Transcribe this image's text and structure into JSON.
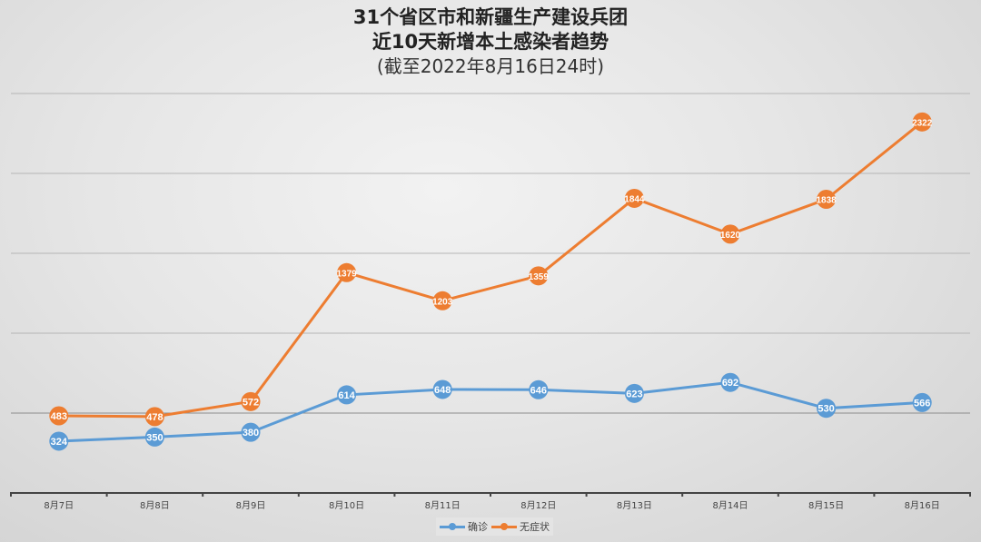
{
  "title": {
    "line1": "31个省区市和新疆生产建设兵团",
    "line2": "近10天新增本土感染者趋势",
    "line3": "(截至2022年8月16日24时)"
  },
  "legend": {
    "confirmed": "确诊",
    "asymptomatic": "无症状"
  },
  "colors": {
    "confirmed": "#5b9bd5",
    "asymptomatic": "#ed7d31",
    "grid": "#b5b5b5",
    "axis": "#444444"
  },
  "chart_data": {
    "type": "line",
    "title": "31个省区市和新疆生产建设兵团 近10天新增本土感染者趋势 (截至2022年8月16日24时)",
    "categories": [
      "8月7日",
      "8月8日",
      "8月9日",
      "8月10日",
      "8月11日",
      "8月12日",
      "8月13日",
      "8月14日",
      "8月15日",
      "8月16日"
    ],
    "series": [
      {
        "name": "确诊",
        "values": [
          324,
          350,
          380,
          614,
          648,
          646,
          623,
          692,
          530,
          566
        ]
      },
      {
        "name": "无症状",
        "values": [
          483,
          478,
          572,
          1379,
          1203,
          1359,
          1844,
          1620,
          1838,
          2322
        ]
      }
    ],
    "xlabel": "",
    "ylabel": "",
    "ylim": [
      0,
      2500
    ],
    "gridlines": [
      500,
      1000,
      1500,
      2000,
      2500
    ],
    "grid": true,
    "y_tick_labels_visible": false,
    "data_labels": true,
    "legend_position": "bottom"
  }
}
